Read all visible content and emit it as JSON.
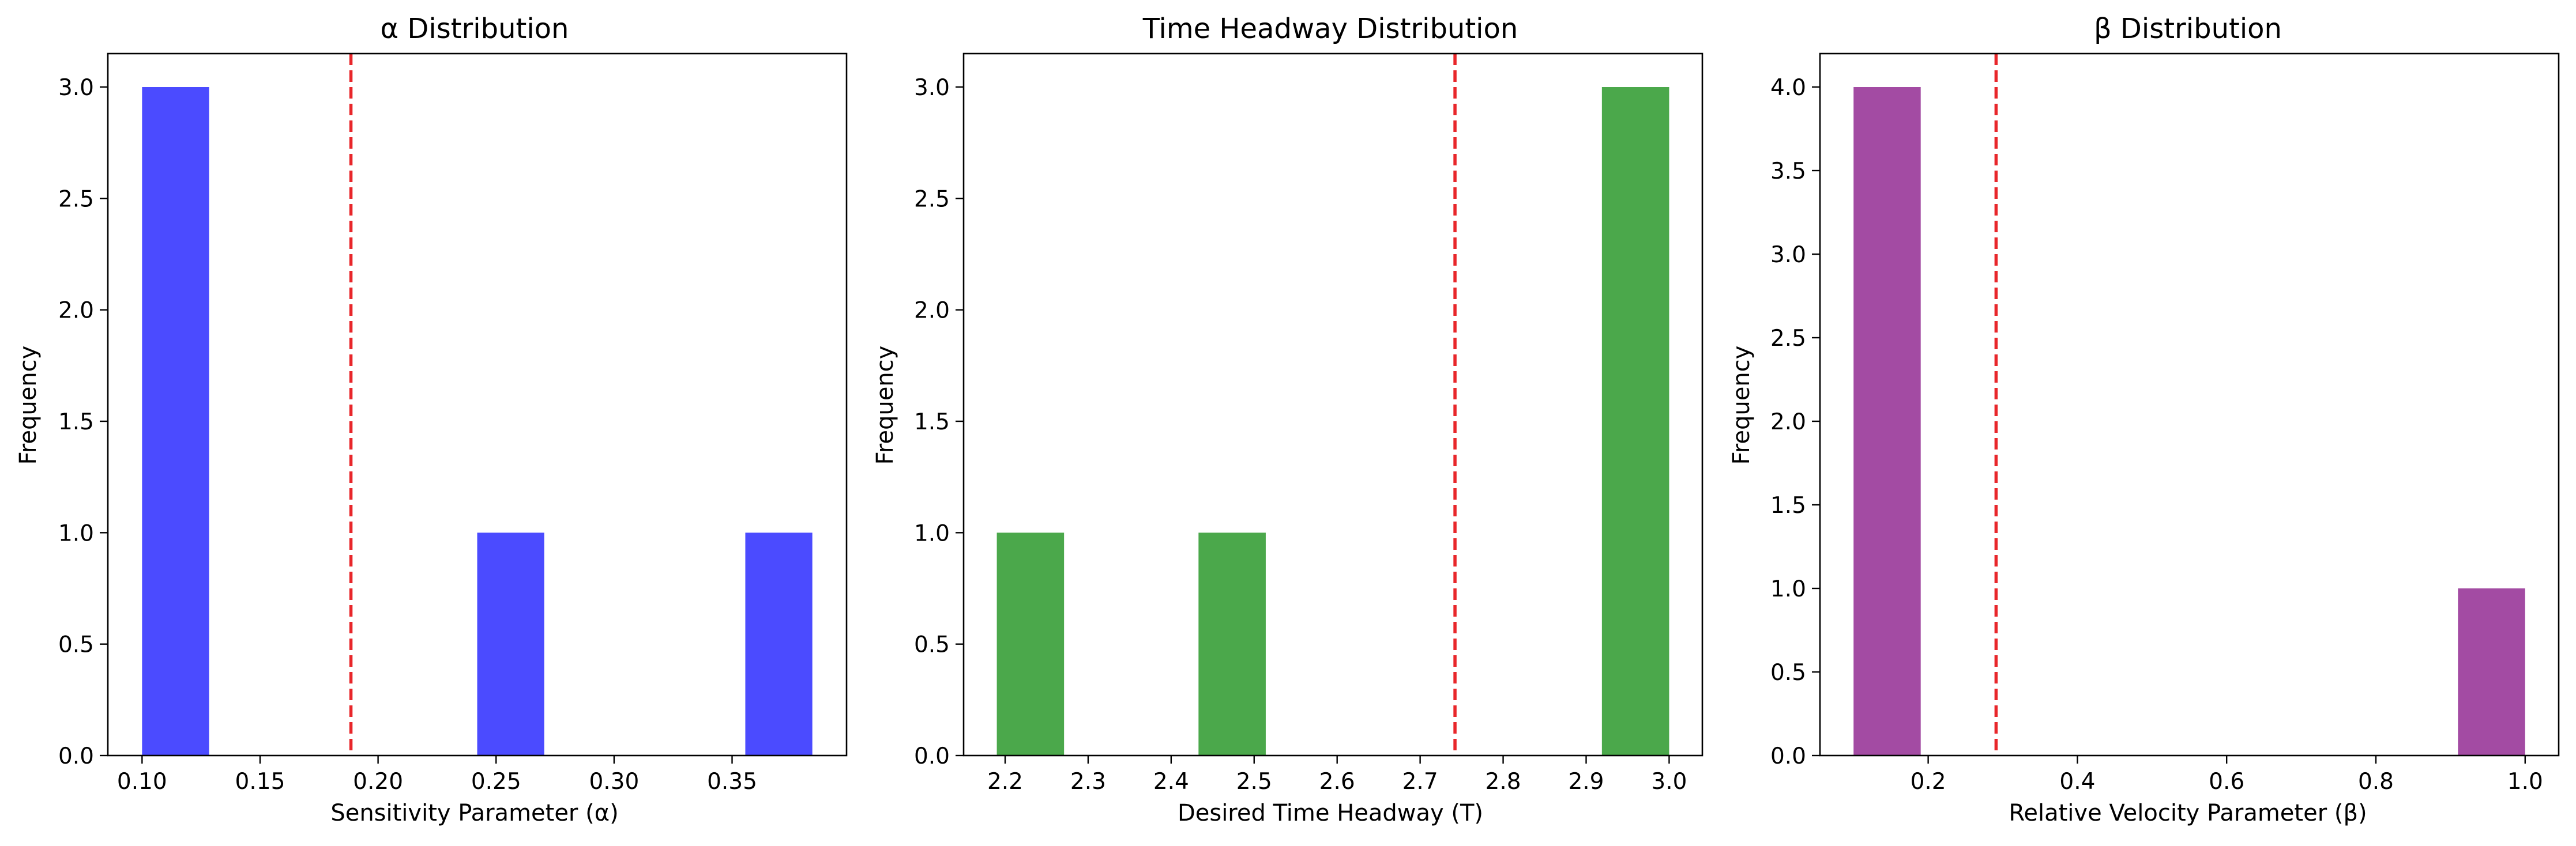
{
  "chart_data": [
    {
      "type": "bar",
      "title": "α Distribution",
      "xlabel": "Sensitivity Parameter (α)",
      "ylabel": "Frequency",
      "xlim": [
        0.0855,
        0.3985
      ],
      "ylim": [
        0,
        3.15
      ],
      "xticks": [
        0.1,
        0.15,
        0.2,
        0.25,
        0.3,
        0.35
      ],
      "xtick_labels": [
        "0.10",
        "0.15",
        "0.20",
        "0.25",
        "0.30",
        "0.35"
      ],
      "yticks": [
        0,
        0.5,
        1,
        1.5,
        2,
        2.5,
        3
      ],
      "ytick_labels": [
        "0.0",
        "0.5",
        "1.0",
        "1.5",
        "2.0",
        "2.5",
        "3.0"
      ],
      "bins": [
        {
          "x0": 0.1,
          "x1": 0.1284,
          "value": 3
        },
        {
          "x0": 0.242,
          "x1": 0.2704,
          "value": 1
        },
        {
          "x0": 0.3556,
          "x1": 0.384,
          "value": 1
        }
      ],
      "mean_line": 0.1885,
      "bar_color": "#4b4bff",
      "line_color": "#e8262a",
      "grid": false
    },
    {
      "type": "bar",
      "title": "Time Headway Distribution",
      "xlabel": "Desired Time Headway (T)",
      "ylabel": "Frequency",
      "xlim": [
        2.15,
        3.04
      ],
      "ylim": [
        0,
        3.15
      ],
      "xticks": [
        2.2,
        2.3,
        2.4,
        2.5,
        2.6,
        2.7,
        2.8,
        2.9,
        3.0
      ],
      "xtick_labels": [
        "2.2",
        "2.3",
        "2.4",
        "2.5",
        "2.6",
        "2.7",
        "2.8",
        "2.9",
        "3.0"
      ],
      "yticks": [
        0,
        0.5,
        1,
        1.5,
        2,
        2.5,
        3
      ],
      "ytick_labels": [
        "0.0",
        "0.5",
        "1.0",
        "1.5",
        "2.0",
        "2.5",
        "3.0"
      ],
      "bins": [
        {
          "x0": 2.19,
          "x1": 2.271,
          "value": 1
        },
        {
          "x0": 2.433,
          "x1": 2.514,
          "value": 1
        },
        {
          "x0": 2.919,
          "x1": 3.0,
          "value": 3
        }
      ],
      "mean_line": 2.742,
      "bar_color": "#4ba84b",
      "line_color": "#e8262a",
      "grid": false
    },
    {
      "type": "bar",
      "title": "β Distribution",
      "xlabel": "Relative Velocity Parameter (β)",
      "ylabel": "Frequency",
      "xlim": [
        0.055,
        1.045
      ],
      "ylim": [
        0,
        4.2
      ],
      "xticks": [
        0.2,
        0.4,
        0.6,
        0.8,
        1.0
      ],
      "xtick_labels": [
        "0.2",
        "0.4",
        "0.6",
        "0.8",
        "1.0"
      ],
      "yticks": [
        0,
        0.5,
        1,
        1.5,
        2,
        2.5,
        3,
        3.5,
        4
      ],
      "ytick_labels": [
        "0.0",
        "0.5",
        "1.0",
        "1.5",
        "2.0",
        "2.5",
        "3.0",
        "3.5",
        "4.0"
      ],
      "bins": [
        {
          "x0": 0.1,
          "x1": 0.19,
          "value": 4
        },
        {
          "x0": 0.91,
          "x1": 1.0,
          "value": 1
        }
      ],
      "mean_line": 0.291,
      "bar_color": "#a34ba3",
      "line_color": "#e8262a",
      "grid": false
    }
  ]
}
